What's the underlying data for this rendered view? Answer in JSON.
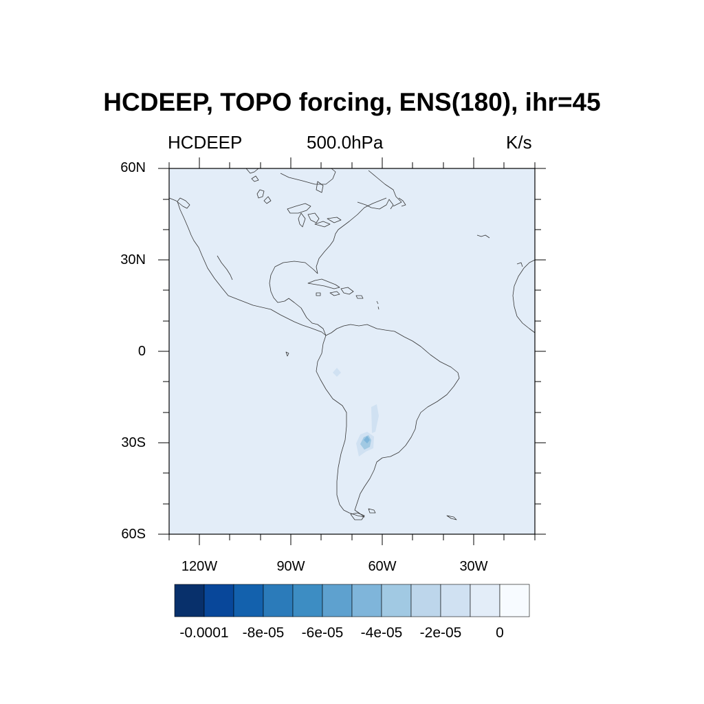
{
  "plot": {
    "title": "HCDEEP, TOPO forcing, ENS(180), ihr=45",
    "left_string": "HCDEEP",
    "center_string": "500.0hPa",
    "right_string": "K/s"
  },
  "map": {
    "region": "Americas",
    "lat_range": [
      -60,
      60
    ],
    "lon_range": [
      -130,
      0
    ],
    "lat_labels": [
      "60N",
      "30N",
      "0",
      "30S",
      "60S"
    ],
    "lon_labels": [
      "120W",
      "90W",
      "60W",
      "30W"
    ],
    "background_fill_color": "#e3edf8"
  },
  "colorbar": {
    "colors": [
      "#08306b",
      "#08479a",
      "#1361ad",
      "#2b7bba",
      "#3d8dc3",
      "#5ea1cf",
      "#7fb5da",
      "#a1c9e3",
      "#bdd6eb",
      "#d0e1f2",
      "#e3edf8",
      "#f7fbff"
    ],
    "labels": [
      "-0.0001",
      "-8e-05",
      "-6e-05",
      "-4e-05",
      "-2e-05",
      "0"
    ]
  }
}
